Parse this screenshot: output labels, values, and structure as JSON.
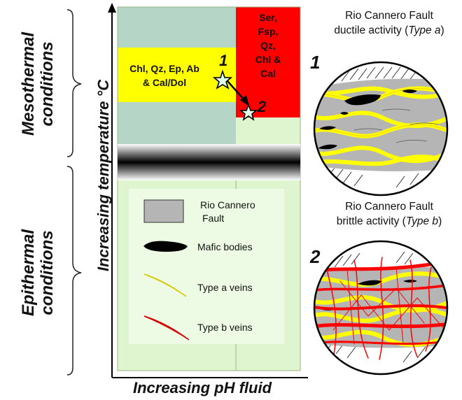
{
  "side_labels": {
    "mesothermal": [
      "Mesothermal",
      "conditions"
    ],
    "epithermal": [
      "Epithermal",
      "conditions"
    ]
  },
  "axes": {
    "y_label": "Increasing temperature °C",
    "x_label": "Increasing pH fluid"
  },
  "boxes": {
    "yellow": [
      "Chl, Qz, Ep, Ab",
      "& Cal/Dol"
    ],
    "red": [
      "Ser,",
      "Fsp,",
      "Qz,",
      "Chl &",
      "Cal"
    ]
  },
  "stars": {
    "one": "1",
    "two": "2"
  },
  "legend": {
    "fault": [
      "Rio Cannero",
      "Fault"
    ],
    "mafic": "Mafic bodies",
    "type_a": "Type a veins",
    "type_b": "Type b veins"
  },
  "panels": {
    "top": {
      "number": "1",
      "title_line1": "Rio Cannero Fault",
      "title_line2_prefix": "ductile activity (",
      "title_italic": "Type a",
      "title_suffix": ")"
    },
    "bottom": {
      "number": "2",
      "title_line1": "Rio Cannero Fault",
      "title_line2_prefix": "brittle activity (",
      "title_italic": "Type b",
      "title_suffix": ")"
    }
  },
  "colors": {
    "teal": "#b5d6c6",
    "yellow": "#ffff00",
    "red": "#ff0000",
    "pale_green": "#dff5cf",
    "legend_bg": "#edfbe4",
    "fault_gray": "#b5b5b5"
  }
}
